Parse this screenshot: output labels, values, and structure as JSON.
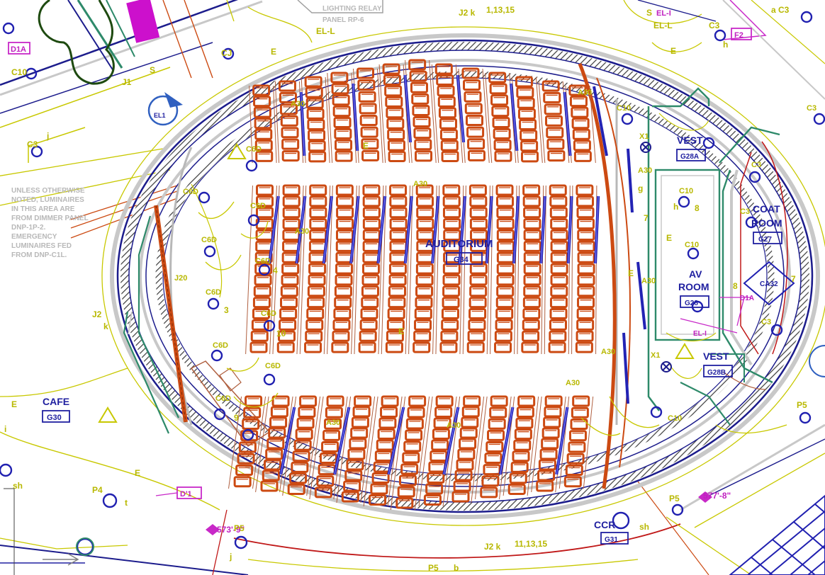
{
  "colors": {
    "chair": "#cc4a12",
    "wall_blue": "#1c1c8c",
    "wall_gray": "#c8c8c8",
    "circuit_yellow": "#c8c800",
    "light_blue": "#2323b4",
    "tag_magenta": "#c828c8",
    "green_wall": "#2e8a6a",
    "red_wall": "#c01818",
    "brown": "#b06040"
  },
  "top_labels": {
    "lighting_relay": "LIGHTING RELAY",
    "panel": "PANEL RP-6",
    "j2": "J2 k",
    "circuits": "1,13,15",
    "el_l_right": "EL-L",
    "el_l_left": "EL-L",
    "e_left": "E",
    "e_right": "E",
    "j1": "J1",
    "s_left": "S",
    "c3_top": "C3",
    "c3_top_b": "a C3",
    "f2_tag": "F2",
    "h_top": "h",
    "el_i_top": "EL-I",
    "s_top": "S"
  },
  "left_labels": {
    "d1a": "D1A",
    "c10": "C10",
    "c3": "C3",
    "j": "j",
    "cj": "CJ",
    "el1_tag": "EL1",
    "note": [
      "UNLESS OTHERWISE",
      "NOTED, LUMINAIRES",
      "IN THIS AREA ARE",
      "FROM DIMMER PANEL",
      "DNP-1P-2.",
      "EMERGENCY",
      "LUMINAIRES FED",
      "FROM DNP-C1L."
    ],
    "j2k": "J2",
    "k": "k",
    "cafe": "CAFE",
    "cafe_room": "G30",
    "p4": "P4",
    "t": "t",
    "e_a": "E",
    "e_b": "E",
    "i": "i",
    "sh": "sh",
    "d1_tag": "D'1",
    "elev1": "573'-9\"",
    "p5": "P5",
    "j_bottom": "j"
  },
  "inner_left_labels": {
    "c6d_1": "C6D",
    "c6d_2": "C6D",
    "c6d_3": "C6D",
    "c6d_4": "C6D",
    "c6d_5": "C6D",
    "c6d_6": "C6D",
    "c6d_7": "C6D",
    "c6d_8": "C6D",
    "c6d_9": "C6D",
    "c6d_10": "C6D",
    "j20": "J20",
    "sub_3": "3",
    "sub_4": "4",
    "sub_10": "10",
    "sub_9": "9"
  },
  "auditorium": {
    "name": "AUDITORIUM",
    "room": "G34",
    "a30": "A30",
    "e": "E"
  },
  "right_labels": {
    "c10_a": "C10",
    "c10_b": "C10",
    "c10_c": "C10",
    "c10_d": "C10",
    "x1_a": "X1",
    "x1_b": "X1",
    "vest_a": "VEST",
    "vest_a_room": "G28A",
    "vest_b": "VEST",
    "vest_b_room": "G28B",
    "av_room_1": "AV",
    "av_room_2": "ROOM",
    "av_room_num": "G28",
    "coat_1": "COAT",
    "coat_2": "ROOM",
    "coat_num": "G27",
    "c3_r1": "C3",
    "c3_r2": "C3",
    "c3_r3": "C3",
    "c3_r4": "C3",
    "d1a_r": "D1A",
    "ca32": "CA32",
    "p5_r": "P5",
    "p5_r2": "P5",
    "elev2": "577'-8\"",
    "ccr": "CCR",
    "ccr_room": "G31",
    "sh_r": "sh",
    "g": "g",
    "h": "h",
    "e_r": "E",
    "seven": "7",
    "eight": "8",
    "el_i_right": "EL-I"
  },
  "bottom_labels": {
    "j2_bottom": "J2 k",
    "circuits_bottom": "11,13,15",
    "p5_bottom": "P5",
    "b_bottom": "b"
  }
}
